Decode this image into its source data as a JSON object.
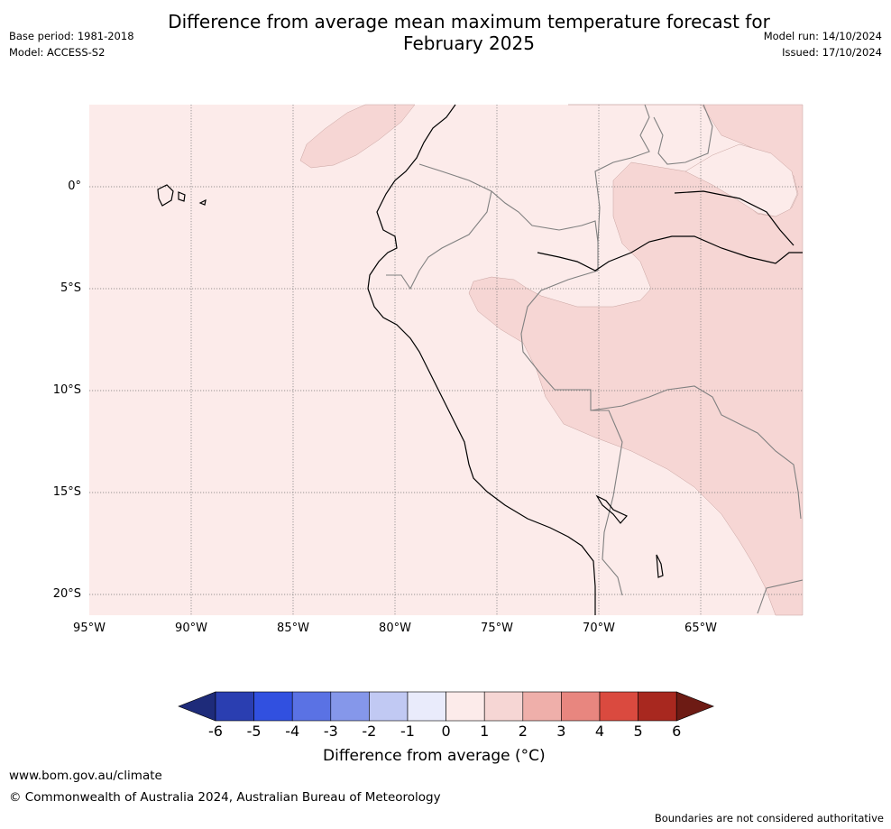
{
  "title_line1": "Difference from average mean maximum temperature forecast for",
  "title_line2": "February 2025",
  "base_period": "Base period: 1981-2018",
  "model": "Model: ACCESS-S2",
  "model_run": "Model run: 14/10/2024",
  "issued": "Issued: 17/10/2024",
  "map": {
    "lat_labels": [
      "0°",
      "5°S",
      "10°S",
      "15°S",
      "20°S"
    ],
    "lon_labels": [
      "95°W",
      "90°W",
      "85°W",
      "80°W",
      "75°W",
      "70°W",
      "65°W"
    ],
    "colors": {
      "background_0_1": "#fcebea",
      "band_1_2": "#f6d6d4",
      "band_0_1_inner": "#fcebea"
    }
  },
  "colorbar": {
    "ticks": [
      "-6",
      "-5",
      "-4",
      "-3",
      "-2",
      "-1",
      "0",
      "1",
      "2",
      "3",
      "4",
      "5",
      "6"
    ],
    "colors": [
      "#1e2b7a",
      "#2a3eb1",
      "#3150e0",
      "#5a72e4",
      "#8597ea",
      "#c1c9f3",
      "#e9ebfb",
      "#fcebea",
      "#f6d6d4",
      "#efafaa",
      "#e8867f",
      "#da4a3f",
      "#a8281f",
      "#6d1b14"
    ],
    "title": "Difference from average (°C)"
  },
  "footer": {
    "url": "www.bom.gov.au/climate",
    "copyright": "© Commonwealth of Australia 2024, Australian Bureau of Meteorology",
    "disclaimer": "Boundaries are not considered authoritative"
  }
}
